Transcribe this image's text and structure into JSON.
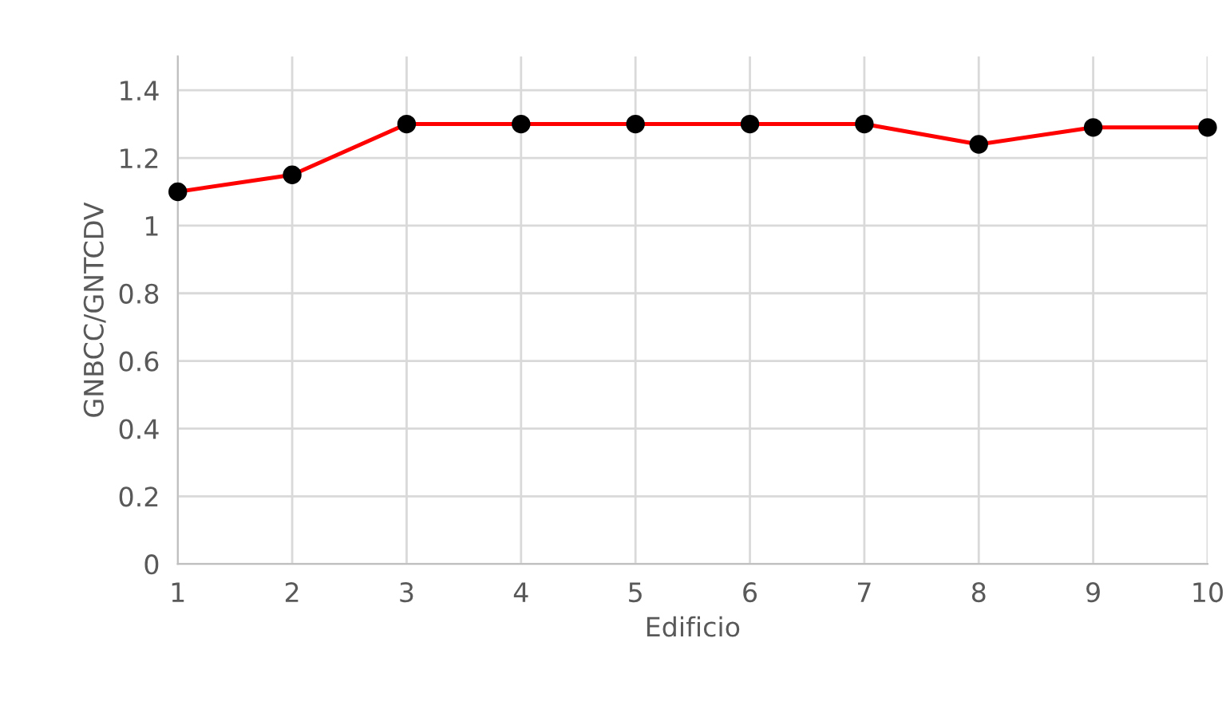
{
  "chart_data": {
    "type": "line",
    "xlabel": "Edificio",
    "ylabel": "GNBCC/GNTCDV",
    "x": [
      1,
      2,
      3,
      4,
      5,
      6,
      7,
      8,
      9,
      10
    ],
    "series": [
      {
        "color": "#ff0000",
        "colors": [
          "#000000",
          "#000000",
          "#000000",
          "#000000",
          "#000000",
          "#000000",
          "#000000",
          "#000000",
          "#000000",
          "#000000"
        ],
        "values": [
          1.1,
          1.15,
          1.3,
          1.3,
          1.3,
          1.3,
          1.3,
          1.24,
          1.29,
          1.29
        ]
      }
    ],
    "xlim": [
      1,
      10
    ],
    "xticks": [
      1,
      2,
      3,
      4,
      5,
      6,
      7,
      8,
      9,
      10
    ],
    "ylim": [
      0,
      1.5
    ],
    "yticks": [
      0,
      0.2,
      0.4,
      0.6,
      0.8,
      1,
      1.2,
      1.4
    ],
    "grid": true,
    "marker": "circle",
    "line_style": "solid"
  }
}
